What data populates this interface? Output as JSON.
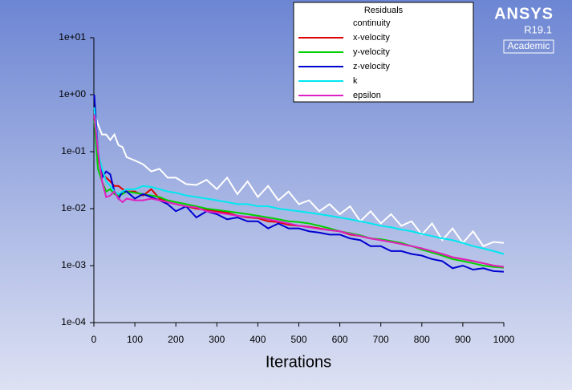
{
  "chart_data": {
    "type": "line",
    "legend_title": "Residuals",
    "xlabel": "Iterations",
    "annotations": [
      "ANSYS",
      "R19.1",
      "Academic"
    ],
    "yscale": "log",
    "grid": false,
    "legend_position": "top-right",
    "xlim": [
      0,
      1000
    ],
    "xticks": [
      0,
      100,
      200,
      300,
      400,
      500,
      600,
      700,
      800,
      900,
      1000
    ],
    "ylim": [
      0.0001,
      10
    ],
    "yticks": [
      {
        "value": 0.0001,
        "label": "1e-04"
      },
      {
        "value": 0.001,
        "label": "1e-03"
      },
      {
        "value": 0.01,
        "label": "1e-02"
      },
      {
        "value": 0.1,
        "label": "1e-01"
      },
      {
        "value": 1,
        "label": "1e+00"
      },
      {
        "value": 10,
        "label": "1e+01"
      }
    ],
    "x": [
      1,
      10,
      20,
      30,
      40,
      50,
      60,
      70,
      80,
      100,
      120,
      140,
      160,
      180,
      200,
      225,
      250,
      275,
      300,
      325,
      350,
      375,
      400,
      425,
      450,
      475,
      500,
      525,
      550,
      575,
      600,
      625,
      650,
      675,
      700,
      725,
      750,
      775,
      800,
      825,
      850,
      875,
      900,
      925,
      950,
      975,
      1000
    ],
    "series": [
      {
        "name": "continuity",
        "color": "#ffffff",
        "values": [
          0.5,
          0.3,
          0.2,
          0.2,
          0.16,
          0.2,
          0.13,
          0.12,
          0.08,
          0.07,
          0.06,
          0.045,
          0.05,
          0.035,
          0.035,
          0.027,
          0.026,
          0.032,
          0.022,
          0.035,
          0.018,
          0.03,
          0.016,
          0.025,
          0.014,
          0.02,
          0.012,
          0.014,
          0.009,
          0.012,
          0.008,
          0.011,
          0.006,
          0.009,
          0.0055,
          0.008,
          0.005,
          0.006,
          0.0035,
          0.0055,
          0.0028,
          0.0045,
          0.0025,
          0.004,
          0.0022,
          0.0026,
          0.0025
        ]
      },
      {
        "name": "x-velocity",
        "color": "#e00000",
        "values": [
          0.4,
          0.08,
          0.04,
          0.035,
          0.03,
          0.025,
          0.025,
          0.022,
          0.02,
          0.02,
          0.017,
          0.022,
          0.015,
          0.013,
          0.012,
          0.011,
          0.01,
          0.0095,
          0.009,
          0.0085,
          0.0075,
          0.007,
          0.0068,
          0.006,
          0.0058,
          0.0052,
          0.005,
          0.0048,
          0.0045,
          0.0042,
          0.004,
          0.0035,
          0.0033,
          0.003,
          0.0028,
          0.0026,
          0.0024,
          0.0022,
          0.002,
          0.0017,
          0.0016,
          0.0014,
          0.0013,
          0.0012,
          0.0011,
          0.001,
          0.00095
        ]
      },
      {
        "name": "y-velocity",
        "color": "#00d000",
        "values": [
          0.35,
          0.05,
          0.03,
          0.02,
          0.022,
          0.018,
          0.017,
          0.018,
          0.02,
          0.019,
          0.018,
          0.017,
          0.016,
          0.014,
          0.013,
          0.012,
          0.011,
          0.01,
          0.0095,
          0.009,
          0.0085,
          0.008,
          0.0075,
          0.007,
          0.0065,
          0.006,
          0.0058,
          0.0055,
          0.005,
          0.0045,
          0.004,
          0.0037,
          0.0034,
          0.003,
          0.0029,
          0.0027,
          0.0025,
          0.0022,
          0.0019,
          0.0017,
          0.0015,
          0.0013,
          0.0012,
          0.0011,
          0.001,
          0.00095,
          0.00092
        ]
      },
      {
        "name": "z-velocity",
        "color": "#0000d0",
        "values": [
          1.0,
          0.1,
          0.035,
          0.045,
          0.04,
          0.02,
          0.015,
          0.02,
          0.02,
          0.015,
          0.018,
          0.016,
          0.014,
          0.012,
          0.009,
          0.011,
          0.007,
          0.009,
          0.008,
          0.0065,
          0.007,
          0.006,
          0.006,
          0.0045,
          0.0055,
          0.0045,
          0.0045,
          0.004,
          0.0038,
          0.0035,
          0.0035,
          0.003,
          0.0028,
          0.0022,
          0.0022,
          0.0018,
          0.0018,
          0.0016,
          0.0015,
          0.0013,
          0.0012,
          0.0009,
          0.001,
          0.00085,
          0.0009,
          0.0008,
          0.00078
        ]
      },
      {
        "name": "k",
        "color": "#00e8f0",
        "values": [
          0.6,
          0.1,
          0.05,
          0.03,
          0.025,
          0.02,
          0.018,
          0.02,
          0.022,
          0.022,
          0.025,
          0.024,
          0.022,
          0.02,
          0.019,
          0.017,
          0.016,
          0.015,
          0.014,
          0.013,
          0.012,
          0.012,
          0.011,
          0.011,
          0.01,
          0.0095,
          0.009,
          0.0085,
          0.008,
          0.0075,
          0.007,
          0.0065,
          0.006,
          0.0055,
          0.005,
          0.0047,
          0.0043,
          0.004,
          0.0036,
          0.0033,
          0.003,
          0.0028,
          0.0025,
          0.0022,
          0.002,
          0.0018,
          0.0016
        ]
      },
      {
        "name": "epsilon",
        "color": "#e020c0",
        "values": [
          0.45,
          0.1,
          0.03,
          0.016,
          0.017,
          0.02,
          0.015,
          0.013,
          0.015,
          0.014,
          0.014,
          0.015,
          0.014,
          0.013,
          0.012,
          0.011,
          0.0105,
          0.009,
          0.0085,
          0.008,
          0.0075,
          0.0072,
          0.007,
          0.0065,
          0.006,
          0.0055,
          0.005,
          0.0047,
          0.0044,
          0.0042,
          0.004,
          0.0036,
          0.0033,
          0.003,
          0.0028,
          0.0026,
          0.0024,
          0.0022,
          0.002,
          0.0018,
          0.0016,
          0.0014,
          0.0013,
          0.0012,
          0.0011,
          0.001,
          0.00095
        ]
      }
    ]
  }
}
